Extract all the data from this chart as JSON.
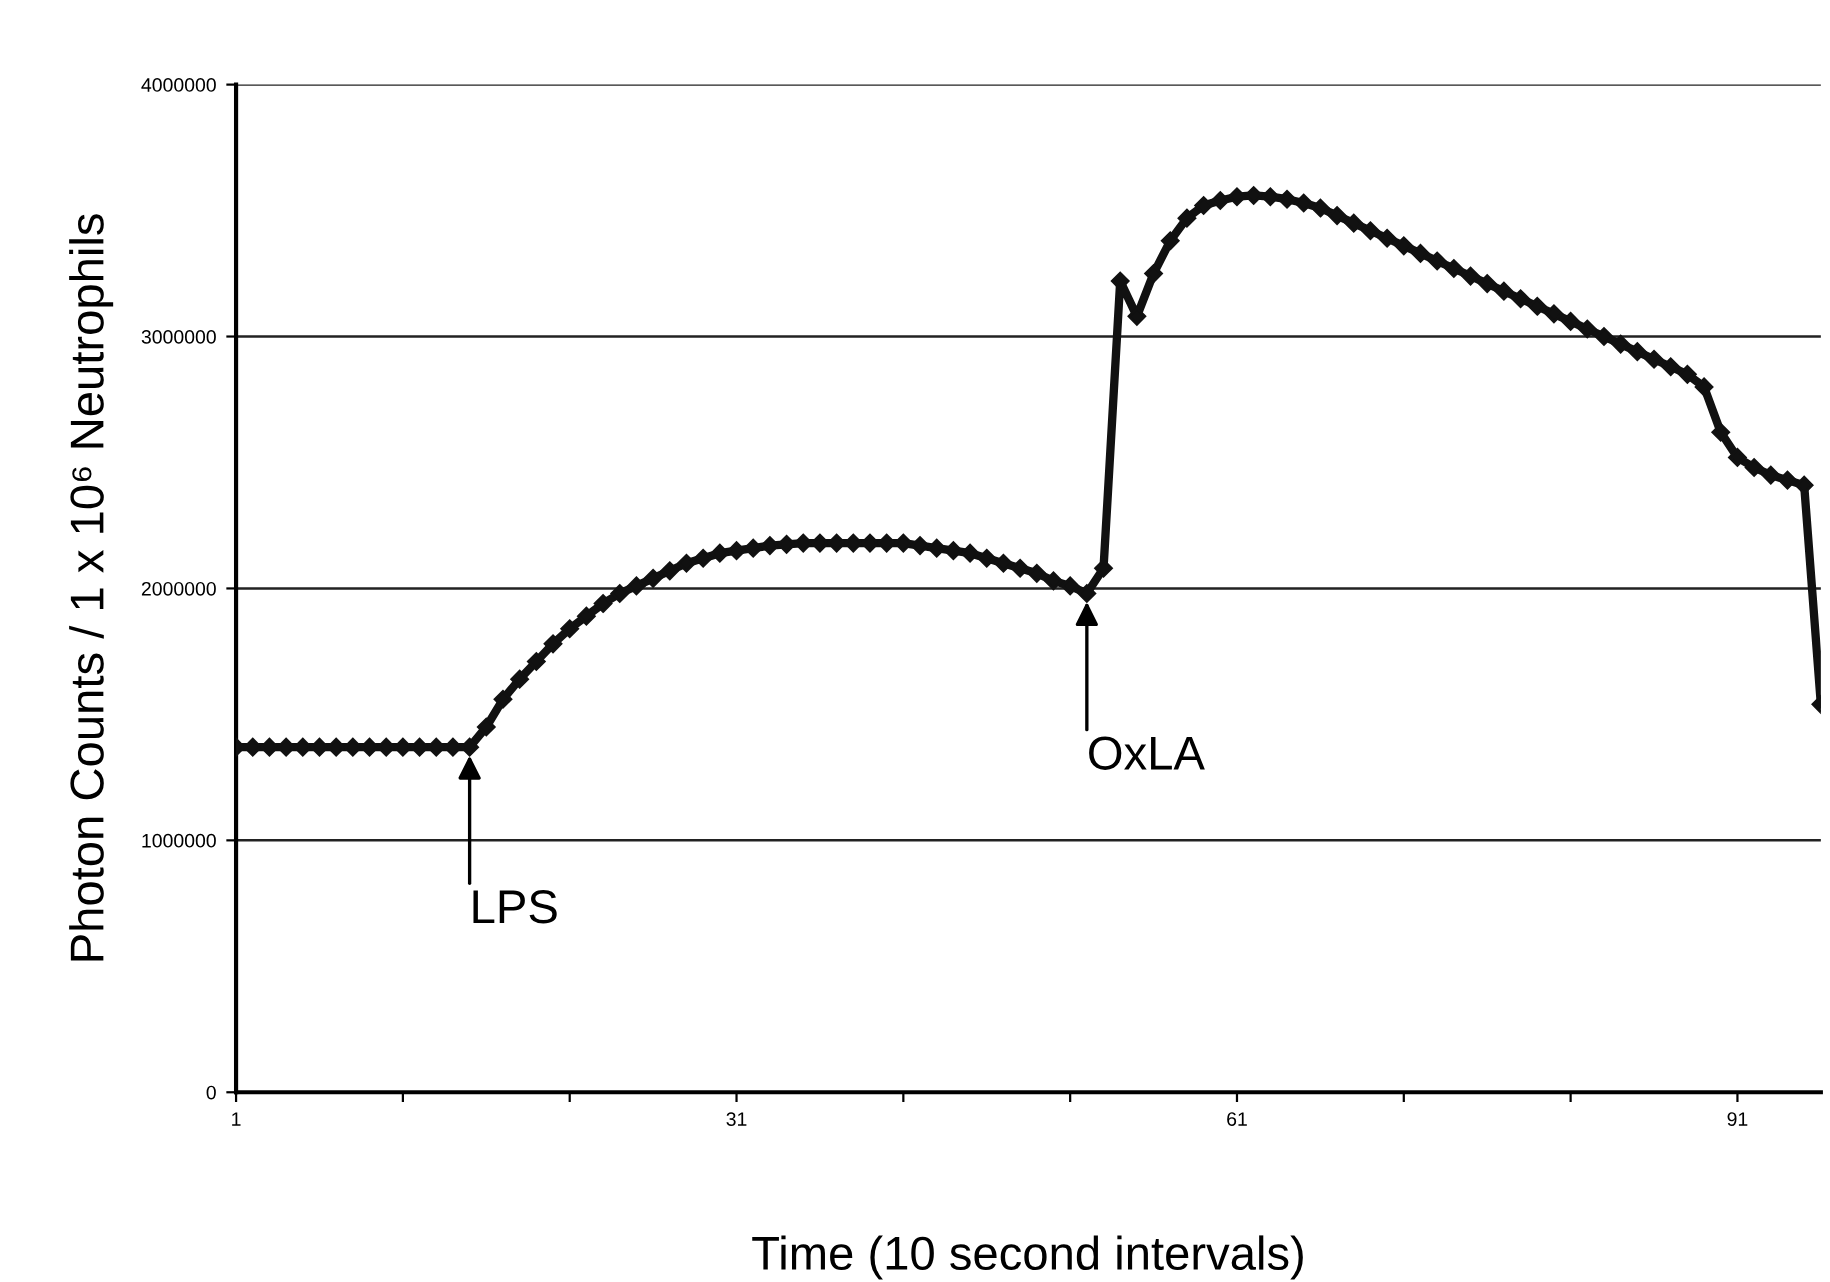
{
  "chart_data": {
    "type": "line",
    "xlabel": "Time (10 second intervals)",
    "ylabel": "Photon Counts / 1 x 10⁶ Neutrophils",
    "x": [
      1,
      2,
      3,
      4,
      5,
      6,
      7,
      8,
      9,
      10,
      11,
      12,
      13,
      14,
      15,
      16,
      17,
      18,
      19,
      20,
      21,
      22,
      23,
      24,
      25,
      26,
      27,
      28,
      29,
      30,
      31,
      32,
      33,
      34,
      35,
      36,
      37,
      38,
      39,
      40,
      41,
      42,
      43,
      44,
      45,
      46,
      47,
      48,
      49,
      50,
      51,
      52,
      53,
      54,
      55,
      56,
      57,
      58,
      59,
      60,
      61,
      62,
      63,
      64,
      65,
      66,
      67,
      68,
      69,
      70,
      71,
      72,
      73,
      74,
      75,
      76,
      77,
      78,
      79,
      80,
      81,
      82,
      83,
      84,
      85,
      86,
      87,
      88,
      89,
      90,
      91,
      92,
      93,
      94,
      95,
      96
    ],
    "series": [
      {
        "color": "#111111",
        "values": [
          1370000,
          1370000,
          1370000,
          1370000,
          1370000,
          1370000,
          1370000,
          1370000,
          1370000,
          1370000,
          1370000,
          1370000,
          1370000,
          1370000,
          1370000,
          1450000,
          1560000,
          1640000,
          1710000,
          1780000,
          1840000,
          1890000,
          1940000,
          1980000,
          2010000,
          2040000,
          2070000,
          2100000,
          2120000,
          2140000,
          2150000,
          2160000,
          2170000,
          2175000,
          2180000,
          2180000,
          2180000,
          2180000,
          2180000,
          2180000,
          2180000,
          2170000,
          2160000,
          2150000,
          2140000,
          2120000,
          2100000,
          2080000,
          2060000,
          2030000,
          2010000,
          1980000,
          2080000,
          3220000,
          3080000,
          3250000,
          3380000,
          3470000,
          3520000,
          3540000,
          3555000,
          3560000,
          3555000,
          3545000,
          3530000,
          3510000,
          3480000,
          3450000,
          3420000,
          3390000,
          3360000,
          3330000,
          3300000,
          3270000,
          3240000,
          3210000,
          3180000,
          3150000,
          3120000,
          3090000,
          3060000,
          3030000,
          3000000,
          2970000,
          2940000,
          2910000,
          2880000,
          2850000,
          2800000,
          2620000,
          2520000,
          2480000,
          2450000,
          2430000,
          2410000,
          1540000
        ]
      }
    ],
    "xlim": [
      1,
      96
    ],
    "xticks": [
      1,
      {
        "value": 11,
        "label": null
      },
      {
        "value": 21,
        "label": null
      },
      31,
      {
        "value": 41,
        "label": null
      },
      {
        "value": 51,
        "label": null
      },
      61,
      {
        "value": 71,
        "label": null
      },
      {
        "value": 81,
        "label": null
      },
      91
    ],
    "ylim": [
      0,
      4000000
    ],
    "yticks": [
      0,
      1000000,
      2000000,
      3000000,
      4000000
    ],
    "grid": "y",
    "marker": "diamond",
    "line_style": "solid",
    "annotations": [
      {
        "text": "LPS",
        "x": 15,
        "y": 1370000
      },
      {
        "text": "OxLA",
        "x": 52,
        "y": 1980000
      }
    ]
  }
}
